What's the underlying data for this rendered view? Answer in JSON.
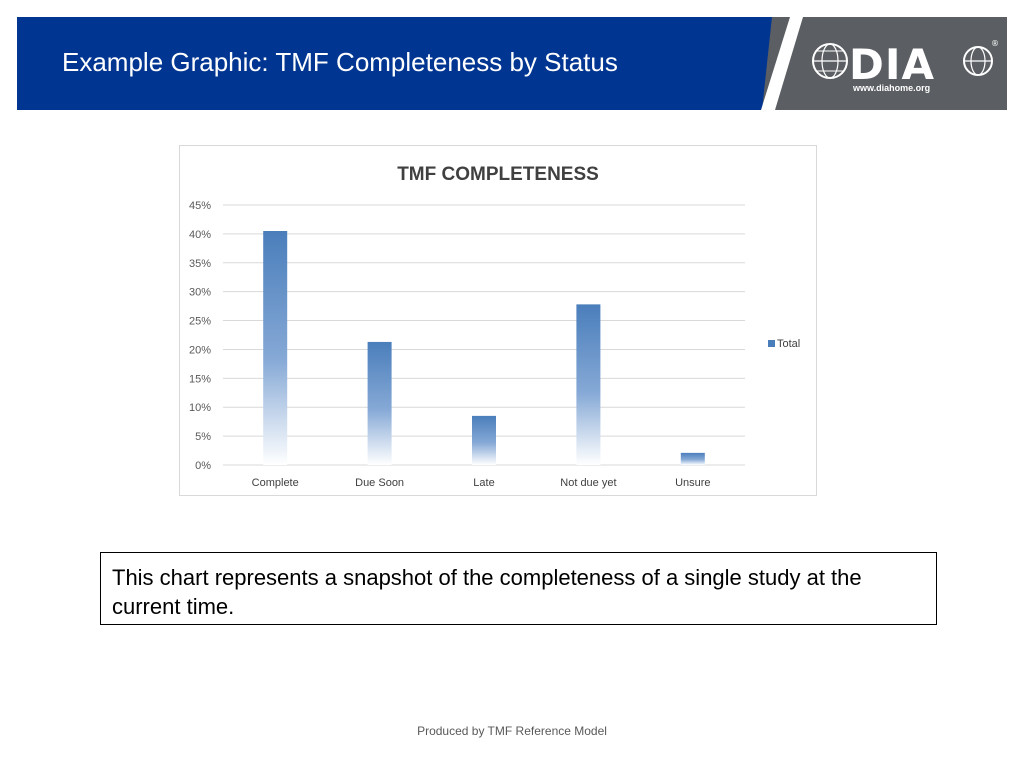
{
  "slide": {
    "title": "Example Graphic: TMF Completeness by Status",
    "caption": "This chart represents a snapshot of the completeness of a single study at the current time.",
    "footer": "Produced by TMF Reference Model"
  },
  "logo": {
    "text": "DIA",
    "registered_mark": "®",
    "url": "www.diahome.org"
  },
  "colors": {
    "header_blue": "#003591",
    "header_grey": "#5b5f63",
    "bar_blue": "#4a7ebb",
    "gridline": "#d9d9d9"
  },
  "chart_data": {
    "type": "bar",
    "title": "TMF COMPLETENESS",
    "categories": [
      "Complete",
      "Due Soon",
      "Late",
      "Not due yet",
      "Unsure"
    ],
    "series": [
      {
        "name": "Total",
        "values": [
          40.5,
          21.3,
          8.5,
          27.8,
          2.1
        ]
      }
    ],
    "y_ticks": [
      "0%",
      "5%",
      "10%",
      "15%",
      "20%",
      "25%",
      "30%",
      "35%",
      "40%",
      "45%"
    ],
    "ylim": [
      0,
      45
    ],
    "y_unit": "%",
    "grid": true,
    "legend_position": "right",
    "bar_fill": "gradient"
  }
}
